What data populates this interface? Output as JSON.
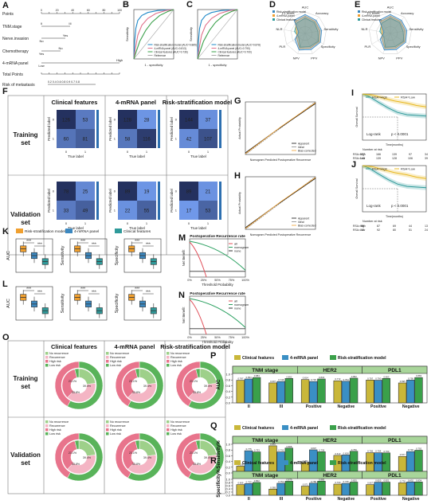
{
  "panels": [
    "A",
    "B",
    "C",
    "D",
    "E",
    "F",
    "G",
    "H",
    "I",
    "J",
    "K",
    "L",
    "M",
    "N",
    "O",
    "P",
    "Q",
    "R"
  ],
  "colors": {
    "clinical": "#c9b73a",
    "mrna": "#3a8fc4",
    "risk": "#3aa04a",
    "orange": "#f0a030",
    "blue": "#3c88c0",
    "teal": "#2f9a9a",
    "green": "#59b35a",
    "pink": "#e8748c",
    "lightgreen": "#9ed08a",
    "lightpink": "#f4b5c4"
  },
  "nomogram": {
    "rows": [
      "Points",
      "TNM.stage",
      "Nerve.invasion",
      "Chemotherapy",
      "4-mRNA panel",
      "Total Points",
      "Risk of metastasis"
    ],
    "labels": {
      "yes": "Yes",
      "no": "No",
      "high": "High",
      "low": "Low",
      "ii": "II",
      "iii": "III"
    },
    "points_ticks": [
      "0",
      "10",
      "20",
      "30",
      "40",
      "50",
      "60",
      "70",
      "80",
      "90",
      "100"
    ],
    "risk_ticks": "0.2 0.4 0.6 0.8 0.9 0.7 0.8"
  },
  "roc": {
    "xlabel": "1 - specificity",
    "ylabel": "Sensitivity",
    "legend_B": [
      "Risk-stratification model (AUC=0.885)",
      "4-mRNA panel (AUC=0.813)",
      "Clinical features (AUC=0.736)",
      "Reference"
    ],
    "legend_C": [
      "Risk-stratification model (AUC=0.878)",
      "4-mRNA panel (AUC=0.790)",
      "Clinical features (AUC=0.700)",
      "Reference"
    ]
  },
  "radar": {
    "axes": [
      "AUC",
      "Accuracy",
      "Sensitivity",
      "Specificity",
      "PPV",
      "NPV",
      "PLR",
      "NLR",
      "F1 score"
    ],
    "legend": [
      "Risk-stratification model",
      "4-mRNA panel",
      "Clinical features"
    ]
  },
  "confusion": {
    "col_titles": [
      "Clinical features",
      "4-mRNA panel",
      "Risk-stratification model"
    ],
    "row_titles": [
      "Training set",
      "Validation set"
    ],
    "xlabel": "True label",
    "ylabel": "Predicted label",
    "ticks": [
      "0",
      "1"
    ],
    "matrices": [
      [
        [
          126,
          53
        ],
        [
          60,
          81
        ]
      ],
      [
        [
          128,
          28
        ],
        [
          58,
          116
        ]
      ],
      [
        [
          144,
          37
        ],
        [
          42,
          107
        ]
      ],
      [
        [
          78,
          25
        ],
        [
          33,
          49
        ]
      ],
      [
        [
          89,
          19
        ],
        [
          22,
          55
        ]
      ],
      [
        [
          89,
          21
        ],
        [
          17,
          53
        ]
      ]
    ]
  },
  "calibration": {
    "xlabel": "Nomogram Predicted Postoperative Recurrence",
    "ylabel": "Actual Probability",
    "legend": [
      "Apparent",
      "Ideal",
      "Bias-corrected"
    ]
  },
  "km": {
    "legend": [
      "RSA=High",
      "RSA=Low"
    ],
    "logrank": "Log-rank",
    "p": "p < 0.0001",
    "xlabel": "Time(months)",
    "ylabel": "Overall Survival",
    "risk_title": "Number at risk",
    "I_risk": {
      "high": [
        "177",
        "166",
        "139",
        "97",
        "34"
      ],
      "low": [
        "143",
        "139",
        "128",
        "106",
        "39"
      ]
    },
    "J_risk": {
      "high": [
        "88",
        "87",
        "69",
        "44",
        "13"
      ],
      "low": [
        "97",
        "92",
        "80",
        "51",
        "24"
      ]
    }
  },
  "boxes": {
    "legend": [
      "Risk-stratification model",
      "4-mRNA panel",
      "Clinical features"
    ],
    "ylabels": [
      "AUC",
      "Sensitivity",
      "Specificity"
    ],
    "sig": "***"
  },
  "dca": {
    "title": "Postoperative Recurrence rate",
    "xlabel": "Threshold Probability",
    "ylabel": "Net Benefit",
    "legend": [
      "all",
      "nomogram",
      "none"
    ],
    "xticks": [
      "0%",
      "25%",
      "50%",
      "75%",
      "100%"
    ]
  },
  "donuts": {
    "col_titles": [
      "Clinical features",
      "4-mRNA panel",
      "Risk-stratification model"
    ],
    "row_titles": [
      "Training set",
      "Validation set"
    ],
    "legend": [
      "No recurrence",
      "Recurrence",
      "High risk",
      "Low risk"
    ],
    "inner_labels": [
      "23.1%",
      "39.4%",
      "33.8%",
      "22.2%"
    ]
  },
  "bars": {
    "legend": [
      "Clinical features",
      "4-mRNA panel",
      "Risk-stratification model"
    ],
    "groups": [
      "TNM stage",
      "HER2",
      "PDL1"
    ],
    "categories": [
      "II",
      "III",
      "Positive",
      "Negative",
      "Positive",
      "Negative"
    ],
    "panels": [
      "P",
      "Q",
      "R"
    ],
    "ylabels": [
      "AUC",
      "Sensitivity%",
      "Specificity%"
    ]
  },
  "chart_data": [
    {
      "panel": "P",
      "type": "bar",
      "ylabel": "AUC",
      "ylim": [
        0,
        1.0
      ],
      "categories": [
        "II",
        "III",
        "Positive",
        "Negative",
        "Positive",
        "Negative"
      ],
      "series": [
        {
          "name": "Clinical features",
          "values": [
            0.787,
            0.697,
            0.814,
            0.772,
            0.797,
            0.695
          ]
        },
        {
          "name": "4-mRNA panel",
          "values": [
            0.834,
            0.746,
            0.745,
            0.754,
            0.79,
            0.795
          ]
        },
        {
          "name": "Risk-stratification model",
          "values": [
            0.884,
            0.852,
            0.834,
            0.862,
            0.853,
            0.883
          ]
        }
      ]
    },
    {
      "panel": "Q",
      "type": "bar",
      "ylabel": "Sensitivity%",
      "ylim": [
        0,
        1.0
      ],
      "categories": [
        "II",
        "III",
        "Positive",
        "Negative",
        "Positive",
        "Negative"
      ],
      "series": [
        {
          "name": "Clinical features",
          "values": [
            0.238,
            0.947,
            0.364,
            0.613,
            0.706,
            0.577
          ]
        },
        {
          "name": "4-mRNA panel",
          "values": [
            0.775,
            0.732,
            0.807,
            0.628,
            0.704,
            0.746
          ]
        },
        {
          "name": "Risk-stratification model",
          "values": [
            0.733,
            0.868,
            0.739,
            0.756,
            0.7,
            0.792
          ]
        }
      ]
    },
    {
      "panel": "R",
      "type": "bar",
      "ylabel": "Specificity%",
      "ylim": [
        0,
        1.0
      ],
      "categories": [
        "II",
        "III",
        "Positive",
        "Negative",
        "Positive",
        "Negative"
      ],
      "series": [
        {
          "name": "Clinical features",
          "values": [
            0.666,
            0.385,
            0.571,
            0.7,
            0.667,
            0.778
          ]
        },
        {
          "name": "4-mRNA panel",
          "values": [
            0.729,
            0.752,
            0.758,
            0.746,
            0.82,
            0.832
          ]
        },
        {
          "name": "Risk-stratification model",
          "values": [
            0.802,
            0.879,
            0.885,
            0.825,
            0.821,
            0.834
          ]
        }
      ]
    }
  ]
}
